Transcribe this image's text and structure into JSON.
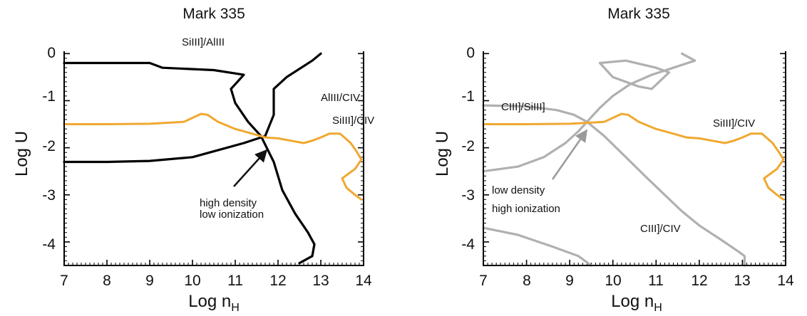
{
  "chart_data": [
    {
      "type": "line",
      "title": "Mark 335",
      "xlabel": "Log n",
      "xlabel_sub": "H",
      "ylabel": "Log U",
      "xlim": [
        7,
        14
      ],
      "ylim": [
        -4.5,
        0.05
      ],
      "xticks": [
        "7",
        "8",
        "9",
        "10",
        "11",
        "12",
        "13",
        "14"
      ],
      "yticks": [
        "0",
        "-1",
        "-2",
        "-3",
        "-4"
      ],
      "series": [
        {
          "name": "SiIII]/AlIII",
          "color": "#000000",
          "points": [
            [
              7.0,
              -0.2
            ],
            [
              8.0,
              -0.2
            ],
            [
              9.0,
              -0.2
            ],
            [
              9.3,
              -0.3
            ],
            [
              10.5,
              -0.35
            ],
            [
              11.2,
              -0.45
            ],
            [
              10.9,
              -0.75
            ],
            [
              11.0,
              -1.05
            ],
            [
              11.3,
              -1.45
            ],
            [
              11.6,
              -1.75
            ],
            [
              11.9,
              -2.3
            ],
            [
              12.1,
              -2.9
            ],
            [
              12.4,
              -3.4
            ],
            [
              12.7,
              -3.8
            ],
            [
              12.85,
              -4.05
            ],
            [
              12.8,
              -4.3
            ],
            [
              12.5,
              -4.45
            ]
          ]
        },
        {
          "name": "AlIII/CIV",
          "color": "#000000",
          "points": [
            [
              7.0,
              -2.3
            ],
            [
              8.0,
              -2.3
            ],
            [
              9.0,
              -2.28
            ],
            [
              10.0,
              -2.2
            ],
            [
              10.6,
              -2.05
            ],
            [
              11.2,
              -1.9
            ],
            [
              11.7,
              -1.75
            ],
            [
              11.9,
              -1.3
            ],
            [
              11.9,
              -0.75
            ],
            [
              12.2,
              -0.5
            ],
            [
              12.8,
              -0.15
            ],
            [
              13.0,
              0.0
            ]
          ]
        },
        {
          "name": "SiIII]/CIV",
          "color": "#f0a830",
          "points": [
            [
              7.0,
              -1.5
            ],
            [
              8.0,
              -1.5
            ],
            [
              9.0,
              -1.49
            ],
            [
              9.8,
              -1.45
            ],
            [
              10.2,
              -1.28
            ],
            [
              10.35,
              -1.3
            ],
            [
              10.6,
              -1.45
            ],
            [
              11.0,
              -1.6
            ],
            [
              11.4,
              -1.7
            ],
            [
              11.7,
              -1.78
            ],
            [
              12.0,
              -1.8
            ],
            [
              12.3,
              -1.85
            ],
            [
              12.6,
              -1.9
            ],
            [
              12.8,
              -1.85
            ],
            [
              13.0,
              -1.78
            ],
            [
              13.2,
              -1.7
            ],
            [
              13.45,
              -1.7
            ],
            [
              13.7,
              -1.9
            ],
            [
              13.85,
              -2.1
            ],
            [
              13.95,
              -2.25
            ],
            [
              13.8,
              -2.45
            ],
            [
              13.65,
              -2.55
            ],
            [
              13.5,
              -2.65
            ],
            [
              13.6,
              -2.85
            ],
            [
              13.8,
              -3.0
            ],
            [
              13.95,
              -3.1
            ]
          ]
        }
      ],
      "annotations": {
        "series_label_1": "SiIII]/AlIII",
        "series_label_2": "AlIII/CIV",
        "series_label_3": "SiIII]/CIV",
        "note_line1": "high density",
        "note_line2": "low ionization"
      }
    },
    {
      "type": "line",
      "title": "Mark 335",
      "xlabel": "Log n",
      "xlabel_sub": "H",
      "ylabel": "Log U",
      "xlim": [
        7,
        14
      ],
      "ylim": [
        -4.5,
        0.05
      ],
      "xticks": [
        "7",
        "8",
        "9",
        "10",
        "11",
        "12",
        "13",
        "14"
      ],
      "yticks": [
        "0",
        "-1",
        "-2",
        "-3",
        "-4"
      ],
      "series": [
        {
          "name": "CIII]/SiIII]",
          "color": "#b0b0b0",
          "points": [
            [
              7.0,
              -1.1
            ],
            [
              8.0,
              -1.12
            ],
            [
              8.7,
              -1.2
            ],
            [
              9.1,
              -1.3
            ],
            [
              9.4,
              -1.45
            ],
            [
              9.8,
              -1.75
            ],
            [
              10.3,
              -2.2
            ],
            [
              10.8,
              -2.65
            ],
            [
              11.2,
              -3.0
            ],
            [
              11.6,
              -3.35
            ],
            [
              12.0,
              -3.65
            ],
            [
              12.5,
              -3.95
            ],
            [
              12.9,
              -4.2
            ],
            [
              13.05,
              -4.3
            ],
            [
              13.05,
              -4.5
            ]
          ]
        },
        {
          "name": "CIII]/CIV",
          "color": "#b0b0b0",
          "points": [
            [
              7.0,
              -2.5
            ],
            [
              7.8,
              -2.4
            ],
            [
              8.4,
              -2.2
            ],
            [
              8.9,
              -1.9
            ],
            [
              9.2,
              -1.65
            ],
            [
              9.4,
              -1.45
            ],
            [
              9.7,
              -1.15
            ],
            [
              10.0,
              -0.9
            ],
            [
              10.4,
              -0.65
            ],
            [
              10.9,
              -0.45
            ],
            [
              11.4,
              -0.3
            ],
            [
              11.9,
              -0.15
            ],
            [
              11.6,
              0.0
            ]
          ]
        },
        {
          "name": "",
          "color": "#b0b0b0",
          "points": [
            [
              7.0,
              -3.7
            ],
            [
              7.8,
              -3.85
            ],
            [
              8.6,
              -4.1
            ],
            [
              9.2,
              -4.3
            ],
            [
              9.5,
              -4.5
            ]
          ]
        },
        {
          "name": "",
          "color": "#b0b0b0",
          "points": [
            [
              9.7,
              -0.2
            ],
            [
              10.3,
              -0.15
            ],
            [
              11.0,
              -0.3
            ],
            [
              11.3,
              -0.4
            ],
            [
              10.9,
              -0.75
            ],
            [
              10.6,
              -0.7
            ],
            [
              10.0,
              -0.5
            ],
            [
              9.7,
              -0.2
            ]
          ]
        },
        {
          "name": "SiIII]/CIV",
          "color": "#f0a830",
          "points": [
            [
              7.0,
              -1.5
            ],
            [
              8.0,
              -1.5
            ],
            [
              9.0,
              -1.49
            ],
            [
              9.8,
              -1.45
            ],
            [
              10.2,
              -1.28
            ],
            [
              10.35,
              -1.3
            ],
            [
              10.6,
              -1.45
            ],
            [
              11.0,
              -1.6
            ],
            [
              11.4,
              -1.7
            ],
            [
              11.7,
              -1.78
            ],
            [
              12.0,
              -1.8
            ],
            [
              12.3,
              -1.85
            ],
            [
              12.6,
              -1.9
            ],
            [
              12.8,
              -1.85
            ],
            [
              13.0,
              -1.78
            ],
            [
              13.2,
              -1.7
            ],
            [
              13.45,
              -1.7
            ],
            [
              13.7,
              -1.9
            ],
            [
              13.85,
              -2.1
            ],
            [
              13.95,
              -2.25
            ],
            [
              13.8,
              -2.45
            ],
            [
              13.65,
              -2.55
            ],
            [
              13.5,
              -2.65
            ],
            [
              13.6,
              -2.85
            ],
            [
              13.8,
              -3.0
            ],
            [
              13.95,
              -3.1
            ]
          ]
        }
      ],
      "annotations": {
        "series_label_1": "CIII]/SiIII]",
        "series_label_2": "SiIII]/CIV",
        "series_label_3": "CIII]/CIV",
        "note_line1": "low density",
        "note_line2": "high ionization"
      }
    }
  ]
}
